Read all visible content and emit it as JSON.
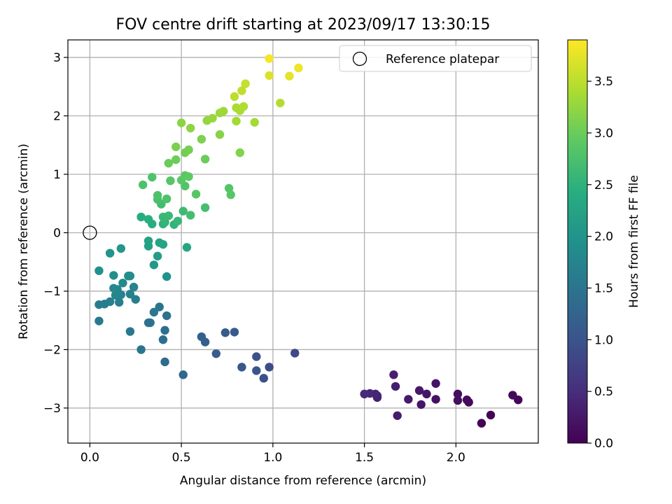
{
  "chart_data": {
    "type": "scatter",
    "title": "FOV centre drift starting at 2023/09/17 13:30:15",
    "xlabel": "Angular distance from reference (arcmin)",
    "ylabel": "Rotation from reference (arcmin)",
    "xlim": [
      -0.12,
      2.45
    ],
    "ylim": [
      -3.6,
      3.3
    ],
    "xticks": [
      0.0,
      0.5,
      1.0,
      1.5,
      2.0
    ],
    "xtick_labels": [
      "0.0",
      "0.5",
      "1.0",
      "1.5",
      "2.0"
    ],
    "yticks": [
      -3,
      -2,
      -1,
      0,
      1,
      2,
      3
    ],
    "ytick_labels": [
      "−3",
      "−2",
      "−1",
      "0",
      "1",
      "2",
      "3"
    ],
    "grid": true,
    "legend": {
      "position": "top-right",
      "entries": [
        "Reference platepar"
      ]
    },
    "reference_point": {
      "x": 0.0,
      "y": 0.0
    },
    "colorbar": {
      "label": "Hours from first FF file",
      "colormap": "viridis",
      "range": [
        0.0,
        3.9
      ],
      "ticks": [
        0.0,
        0.5,
        1.0,
        1.5,
        2.0,
        2.5,
        3.0,
        3.5
      ],
      "tick_labels": [
        "0.0",
        "0.5",
        "1.0",
        "1.5",
        "2.0",
        "2.5",
        "3.0",
        "3.5"
      ]
    },
    "series": [
      {
        "columns": [
          "x",
          "y",
          "hours"
        ],
        "points": [
          [
            2.14,
            -3.26,
            0.02
          ],
          [
            2.19,
            -3.12,
            0.04
          ],
          [
            2.34,
            -2.86,
            0.06
          ],
          [
            2.31,
            -2.78,
            0.08
          ],
          [
            2.07,
            -2.9,
            0.1
          ],
          [
            2.06,
            -2.86,
            0.12
          ],
          [
            2.01,
            -2.87,
            0.14
          ],
          [
            2.01,
            -2.76,
            0.16
          ],
          [
            1.89,
            -2.85,
            0.18
          ],
          [
            1.89,
            -2.58,
            0.2
          ],
          [
            1.84,
            -2.76,
            0.22
          ],
          [
            1.81,
            -2.94,
            0.24
          ],
          [
            1.8,
            -2.7,
            0.26
          ],
          [
            1.74,
            -2.85,
            0.28
          ],
          [
            1.68,
            -3.13,
            0.3
          ],
          [
            1.67,
            -2.63,
            0.32
          ],
          [
            1.66,
            -2.43,
            0.34
          ],
          [
            1.57,
            -2.82,
            0.36
          ],
          [
            1.57,
            -2.79,
            0.38
          ],
          [
            1.56,
            -2.76,
            0.4
          ],
          [
            1.53,
            -2.75,
            0.42
          ],
          [
            1.5,
            -2.76,
            0.45
          ],
          [
            1.12,
            -2.06,
            0.85
          ],
          [
            0.98,
            -2.3,
            0.9
          ],
          [
            0.95,
            -2.49,
            0.95
          ],
          [
            0.91,
            -2.12,
            0.98
          ],
          [
            0.91,
            -2.36,
            1.02
          ],
          [
            0.83,
            -2.3,
            1.05
          ],
          [
            0.79,
            -1.7,
            1.08
          ],
          [
            0.74,
            -1.71,
            1.12
          ],
          [
            0.69,
            -2.07,
            1.15
          ],
          [
            0.63,
            -1.87,
            1.18
          ],
          [
            0.61,
            -1.78,
            1.2
          ],
          [
            0.51,
            -2.43,
            1.3
          ],
          [
            0.41,
            -2.21,
            1.35
          ],
          [
            0.42,
            -1.42,
            1.45
          ],
          [
            0.41,
            -1.67,
            1.4
          ],
          [
            0.4,
            -1.83,
            1.38
          ],
          [
            0.38,
            -1.27,
            1.5
          ],
          [
            0.35,
            -1.36,
            1.52
          ],
          [
            0.33,
            -1.54,
            1.48
          ],
          [
            0.32,
            -1.54,
            1.46
          ],
          [
            0.28,
            -2.0,
            1.5
          ],
          [
            0.22,
            -1.69,
            1.55
          ],
          [
            0.25,
            -1.14,
            1.65
          ],
          [
            0.22,
            -1.05,
            1.7
          ],
          [
            0.24,
            -0.93,
            1.75
          ],
          [
            0.17,
            -1.06,
            1.72
          ],
          [
            0.16,
            -1.19,
            1.68
          ],
          [
            0.15,
            -0.97,
            1.78
          ],
          [
            0.14,
            -1.07,
            1.8
          ],
          [
            0.13,
            -0.95,
            1.82
          ],
          [
            0.11,
            -1.18,
            1.66
          ],
          [
            0.08,
            -1.22,
            1.62
          ],
          [
            0.05,
            -1.23,
            1.64
          ],
          [
            0.05,
            -1.51,
            1.58
          ],
          [
            0.18,
            -0.86,
            1.85
          ],
          [
            0.21,
            -0.74,
            1.88
          ],
          [
            0.22,
            -0.74,
            1.9
          ],
          [
            0.13,
            -0.73,
            1.92
          ],
          [
            0.05,
            -0.65,
            1.95
          ],
          [
            0.11,
            -0.35,
            2.0
          ],
          [
            0.17,
            -0.27,
            2.05
          ],
          [
            0.42,
            -0.75,
            1.98
          ],
          [
            0.35,
            -0.55,
            2.1
          ],
          [
            0.37,
            -0.4,
            2.15
          ],
          [
            0.32,
            -0.23,
            2.2
          ],
          [
            0.32,
            -0.14,
            2.22
          ],
          [
            0.38,
            -0.17,
            2.25
          ],
          [
            0.4,
            -0.2,
            2.28
          ],
          [
            0.53,
            -0.25,
            2.3
          ],
          [
            0.28,
            0.27,
            2.4
          ],
          [
            0.32,
            0.23,
            2.45
          ],
          [
            0.34,
            0.15,
            2.42
          ],
          [
            0.4,
            0.15,
            2.5
          ],
          [
            0.41,
            0.18,
            2.55
          ],
          [
            0.46,
            0.14,
            2.52
          ],
          [
            0.48,
            0.2,
            2.58
          ],
          [
            0.43,
            0.29,
            2.62
          ],
          [
            0.4,
            0.27,
            2.6
          ],
          [
            0.51,
            0.37,
            2.65
          ],
          [
            0.55,
            0.3,
            2.7
          ],
          [
            0.63,
            0.43,
            2.72
          ],
          [
            0.39,
            0.49,
            2.68
          ],
          [
            0.37,
            0.57,
            2.75
          ],
          [
            0.37,
            0.64,
            2.78
          ],
          [
            0.42,
            0.58,
            2.8
          ],
          [
            0.44,
            0.89,
            2.85
          ],
          [
            0.52,
            0.8,
            2.82
          ],
          [
            0.5,
            0.9,
            2.88
          ],
          [
            0.52,
            0.98,
            2.9
          ],
          [
            0.54,
            0.96,
            2.92
          ],
          [
            0.58,
            0.66,
            2.86
          ],
          [
            0.76,
            0.76,
            2.84
          ],
          [
            0.77,
            0.65,
            2.87
          ],
          [
            0.29,
            0.82,
            2.78
          ],
          [
            0.34,
            0.95,
            2.8
          ],
          [
            0.43,
            1.19,
            3.0
          ],
          [
            0.47,
            1.25,
            3.02
          ],
          [
            0.52,
            1.37,
            3.05
          ],
          [
            0.54,
            1.42,
            3.08
          ],
          [
            0.47,
            1.47,
            3.1
          ],
          [
            0.63,
            1.26,
            3.0
          ],
          [
            0.61,
            1.6,
            3.12
          ],
          [
            0.5,
            1.88,
            3.2
          ],
          [
            0.55,
            1.79,
            3.22
          ],
          [
            0.64,
            1.92,
            3.25
          ],
          [
            0.67,
            1.96,
            3.28
          ],
          [
            0.71,
            1.68,
            3.18
          ],
          [
            0.71,
            2.05,
            3.3
          ],
          [
            0.73,
            2.08,
            3.32
          ],
          [
            0.82,
            1.37,
            3.15
          ],
          [
            0.8,
            1.91,
            3.35
          ],
          [
            0.8,
            2.14,
            3.38
          ],
          [
            0.82,
            2.09,
            3.4
          ],
          [
            0.84,
            2.16,
            3.42
          ],
          [
            0.9,
            1.89,
            3.36
          ],
          [
            0.79,
            2.33,
            3.5
          ],
          [
            0.83,
            2.43,
            3.52
          ],
          [
            0.85,
            2.55,
            3.55
          ],
          [
            1.04,
            2.22,
            3.45
          ],
          [
            0.98,
            2.69,
            3.7
          ],
          [
            0.98,
            2.98,
            3.85
          ],
          [
            1.09,
            2.68,
            3.75
          ],
          [
            1.14,
            2.82,
            3.8
          ]
        ]
      }
    ]
  }
}
